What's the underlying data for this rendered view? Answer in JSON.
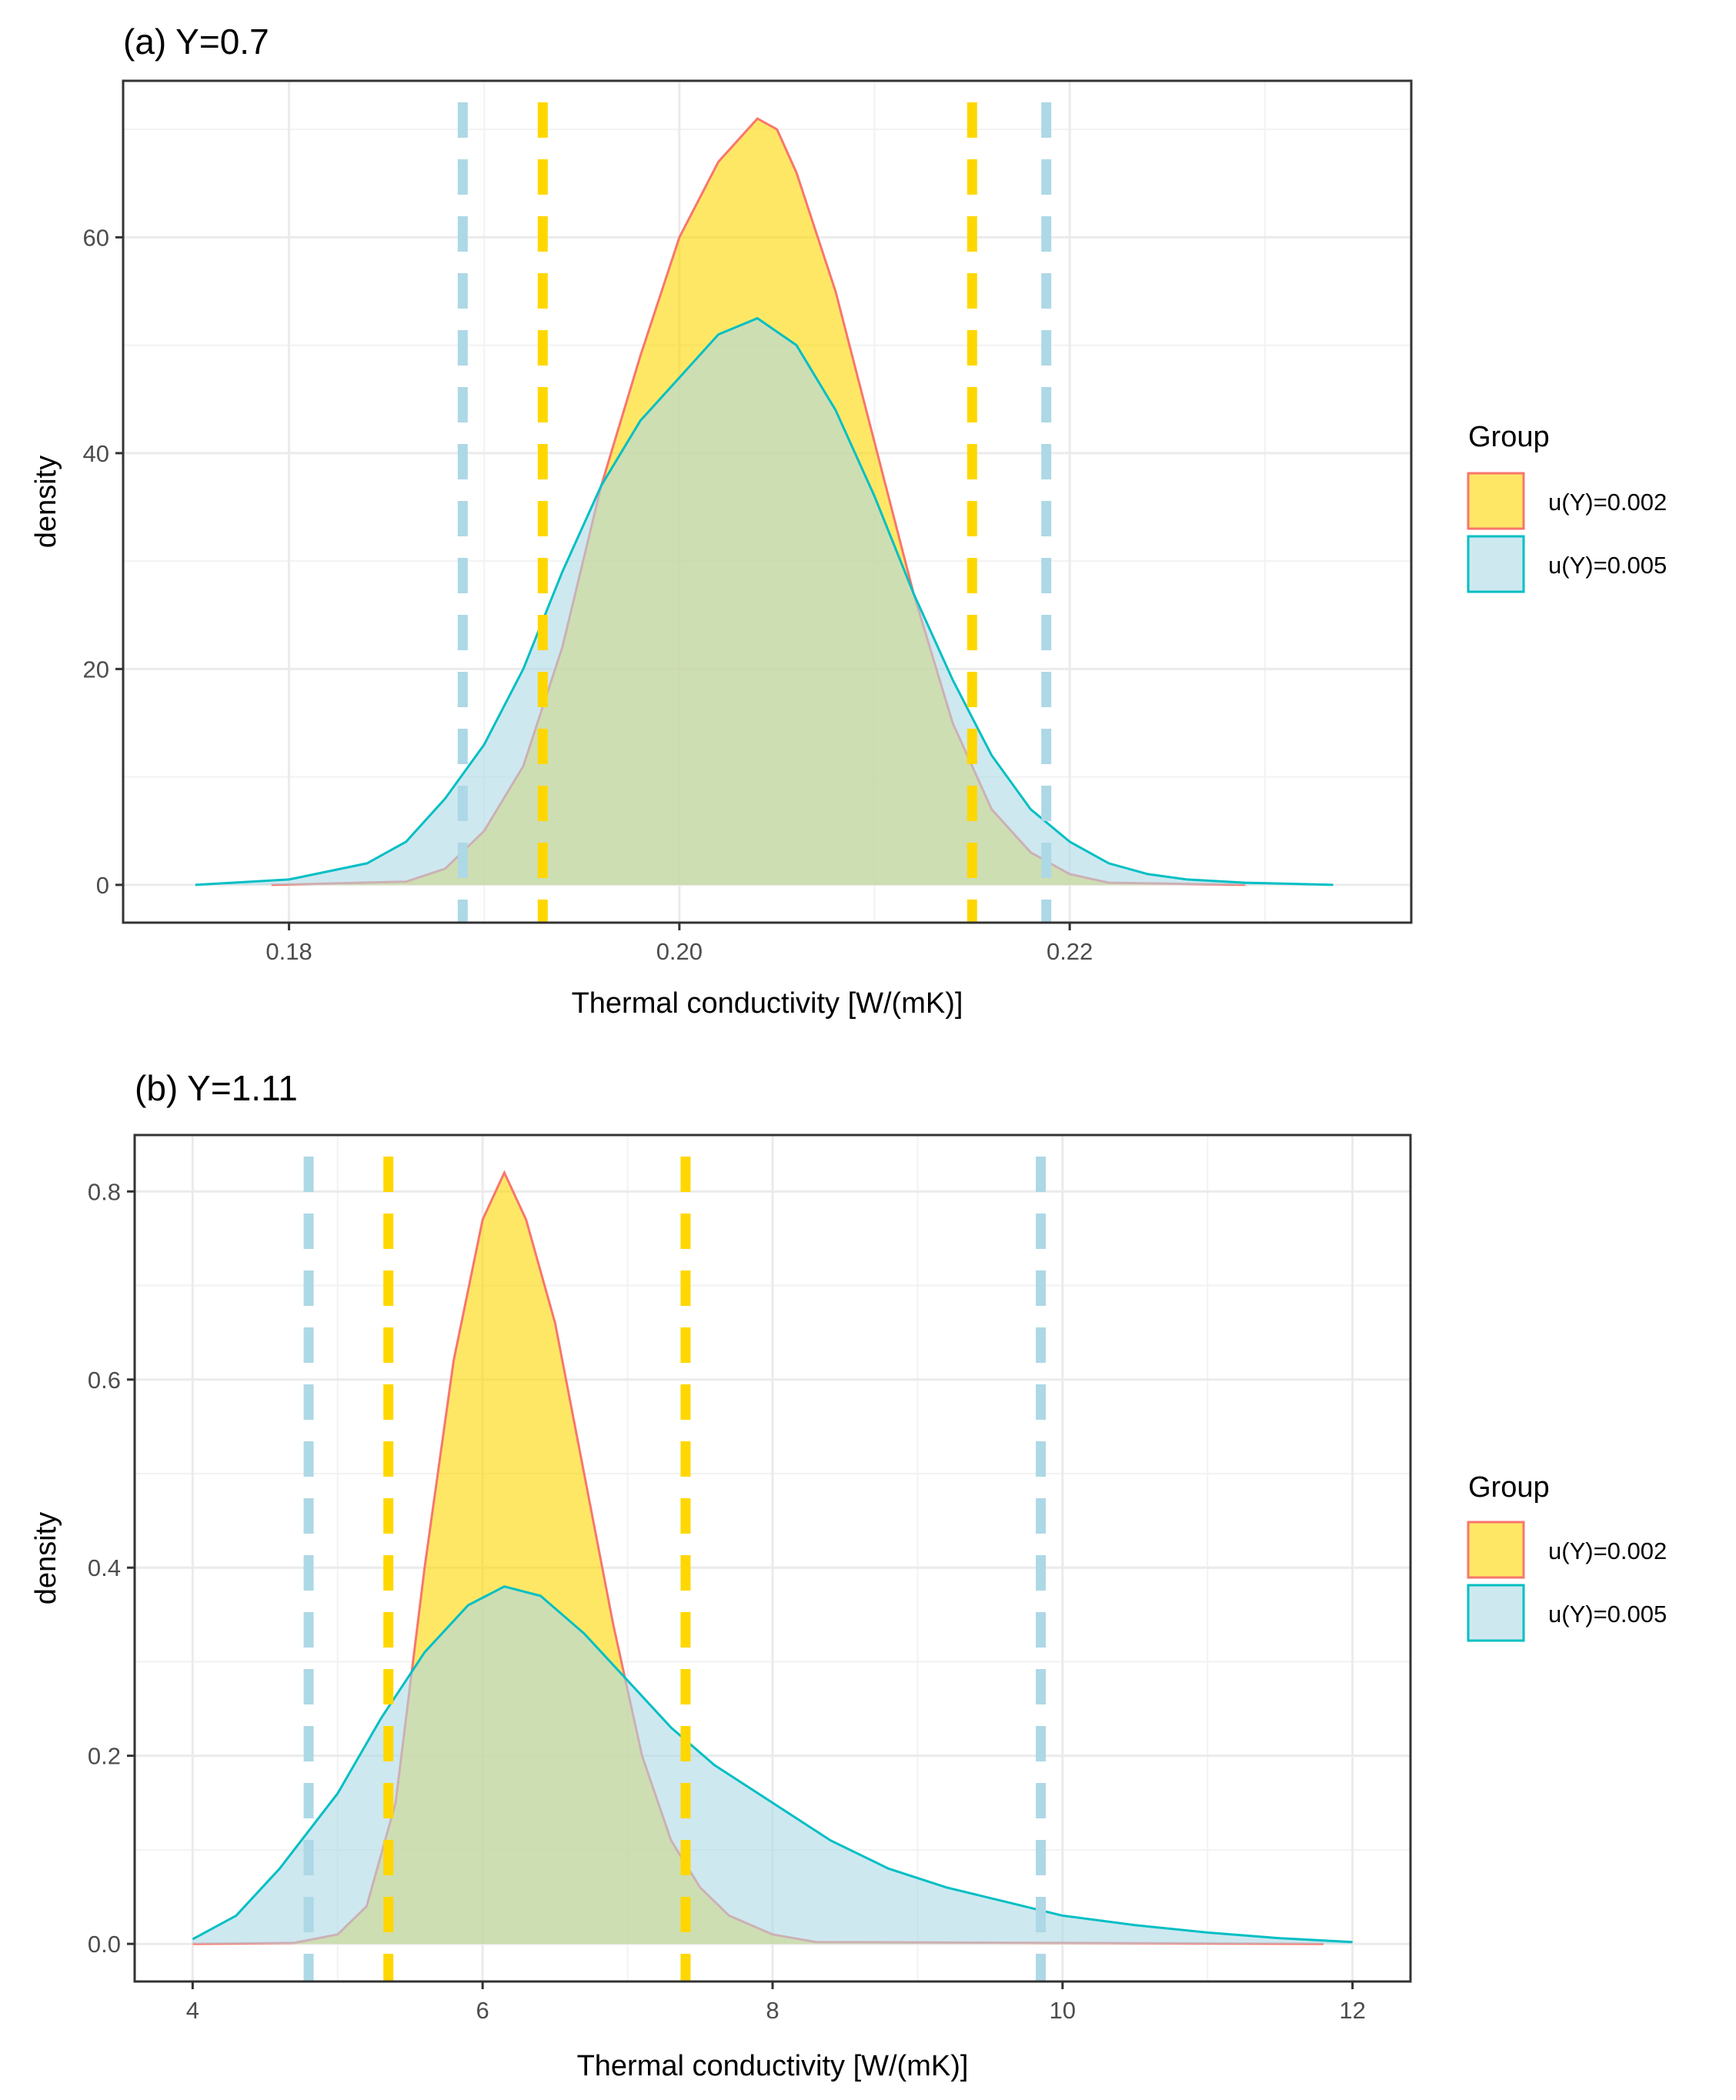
{
  "chart_data": [
    {
      "type": "area",
      "panel": "a",
      "title": "(a) Y=0.7",
      "xlabel": "Thermal conductivity [W/(mK)]",
      "ylabel": "density",
      "xlim": [
        0.1715,
        0.2375
      ],
      "ylim": [
        -3.5,
        74.5
      ],
      "x_ticks": [
        0.18,
        0.2,
        0.22
      ],
      "x_tick_labels": [
        "0.18",
        "0.20",
        "0.22"
      ],
      "x_minor_ticks": [
        0.19,
        0.21,
        0.23
      ],
      "y_ticks": [
        0,
        20,
        40,
        60
      ],
      "y_tick_labels": [
        "0",
        "20",
        "40",
        "60"
      ],
      "y_minor_ticks": [
        10,
        30,
        50,
        70
      ],
      "grid": true,
      "legend_position": "right",
      "legend": {
        "title": "Group",
        "entries": [
          {
            "label": "u(Y)=0.002",
            "fill": "#ffd700",
            "stroke": "#f8766d"
          },
          {
            "label": "u(Y)=0.005",
            "fill": "#add8e6",
            "stroke": "#00bfc4"
          }
        ]
      },
      "series": [
        {
          "name": "u(Y)=0.002",
          "fill": "#ffd700",
          "stroke": "#f8766d",
          "x": [
            0.1791,
            0.186,
            0.188,
            0.19,
            0.192,
            0.194,
            0.196,
            0.198,
            0.2,
            0.202,
            0.203,
            0.204,
            0.205,
            0.206,
            0.208,
            0.21,
            0.212,
            0.214,
            0.216,
            0.218,
            0.22,
            0.222,
            0.229
          ],
          "y": [
            0,
            0.3,
            1.5,
            5,
            11,
            22,
            37,
            49,
            60,
            67,
            69,
            71,
            70,
            66,
            55,
            41,
            27,
            15,
            7,
            3,
            1,
            0.2,
            0
          ]
        },
        {
          "name": "u(Y)=0.005",
          "fill": "#add8e6",
          "stroke": "#00bfc4",
          "x": [
            0.1752,
            0.18,
            0.184,
            0.186,
            0.188,
            0.19,
            0.192,
            0.194,
            0.196,
            0.198,
            0.2,
            0.202,
            0.204,
            0.206,
            0.208,
            0.21,
            0.212,
            0.214,
            0.216,
            0.218,
            0.22,
            0.222,
            0.224,
            0.226,
            0.229,
            0.2335
          ],
          "y": [
            0,
            0.5,
            2,
            4,
            8,
            13,
            20,
            29,
            37,
            43,
            47,
            51,
            52.5,
            50,
            44,
            36,
            27,
            19,
            12,
            7,
            4,
            2,
            1,
            0.5,
            0.2,
            0
          ]
        }
      ],
      "vlines": [
        {
          "x": 0.1889,
          "color": "#add8e6",
          "group": "u(Y)=0.005"
        },
        {
          "x": 0.193,
          "color": "#ffd700",
          "group": "u(Y)=0.002"
        },
        {
          "x": 0.215,
          "color": "#ffd700",
          "group": "u(Y)=0.002"
        },
        {
          "x": 0.2188,
          "color": "#add8e6",
          "group": "u(Y)=0.005"
        }
      ]
    },
    {
      "type": "area",
      "panel": "b",
      "title": "(b) Y=1.11",
      "xlabel": "Thermal conductivity [W/(mK)]",
      "ylabel": "density",
      "xlim": [
        3.6,
        12.4
      ],
      "ylim": [
        -0.04,
        0.86
      ],
      "x_ticks": [
        4,
        6,
        8,
        10,
        12
      ],
      "x_tick_labels": [
        "4",
        "6",
        "8",
        "10",
        "12"
      ],
      "x_minor_ticks": [
        5,
        7,
        9,
        11
      ],
      "y_ticks": [
        0.0,
        0.2,
        0.4,
        0.6,
        0.8
      ],
      "y_tick_labels": [
        "0.0",
        "0.2",
        "0.4",
        "0.6",
        "0.8"
      ],
      "y_minor_ticks": [
        0.1,
        0.3,
        0.5,
        0.7
      ],
      "grid": true,
      "legend_position": "right",
      "legend": {
        "title": "Group",
        "entries": [
          {
            "label": "u(Y)=0.002",
            "fill": "#ffd700",
            "stroke": "#f8766d"
          },
          {
            "label": "u(Y)=0.005",
            "fill": "#add8e6",
            "stroke": "#00bfc4"
          }
        ]
      },
      "series": [
        {
          "name": "u(Y)=0.002",
          "fill": "#ffd700",
          "stroke": "#f8766d",
          "x": [
            4.0,
            4.7,
            5.0,
            5.2,
            5.4,
            5.6,
            5.8,
            6.0,
            6.15,
            6.3,
            6.5,
            6.7,
            6.9,
            7.1,
            7.3,
            7.5,
            7.7,
            8.0,
            8.3,
            11.8
          ],
          "y": [
            0,
            0.001,
            0.01,
            0.04,
            0.15,
            0.4,
            0.62,
            0.77,
            0.82,
            0.77,
            0.66,
            0.5,
            0.34,
            0.2,
            0.11,
            0.06,
            0.03,
            0.01,
            0.002,
            0
          ]
        },
        {
          "name": "u(Y)=0.005",
          "fill": "#add8e6",
          "stroke": "#00bfc4",
          "x": [
            4.0,
            4.3,
            4.6,
            4.8,
            5.0,
            5.3,
            5.6,
            5.9,
            6.15,
            6.4,
            6.7,
            7.0,
            7.3,
            7.6,
            8.0,
            8.4,
            8.8,
            9.2,
            9.6,
            10.0,
            10.5,
            11.0,
            11.5,
            12.0
          ],
          "y": [
            0.005,
            0.03,
            0.08,
            0.12,
            0.16,
            0.24,
            0.31,
            0.36,
            0.38,
            0.37,
            0.33,
            0.28,
            0.23,
            0.19,
            0.15,
            0.11,
            0.08,
            0.06,
            0.045,
            0.03,
            0.02,
            0.012,
            0.006,
            0.002
          ]
        }
      ],
      "vlines": [
        {
          "x": 4.8,
          "color": "#add8e6",
          "group": "u(Y)=0.005"
        },
        {
          "x": 5.35,
          "color": "#ffd700",
          "group": "u(Y)=0.002"
        },
        {
          "x": 7.4,
          "color": "#ffd700",
          "group": "u(Y)=0.002"
        },
        {
          "x": 9.85,
          "color": "#add8e6",
          "group": "u(Y)=0.005"
        }
      ]
    }
  ]
}
